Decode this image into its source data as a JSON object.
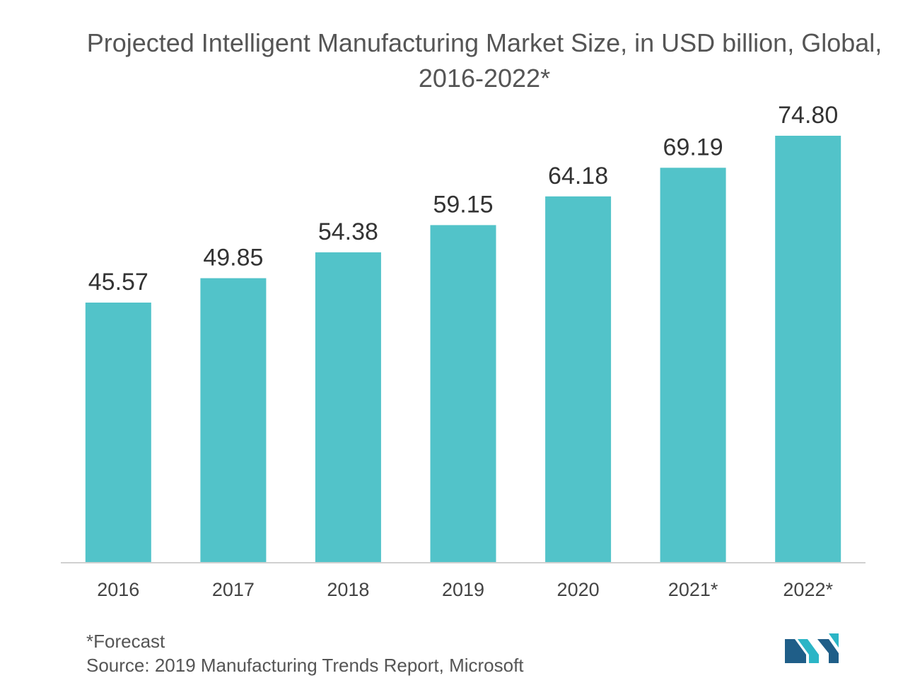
{
  "chart_data": {
    "type": "bar",
    "title": "Projected Intelligent Manufacturing Market Size, in USD billion, Global, 2016-2022*",
    "categories": [
      "2016",
      "2017",
      "2018",
      "2019",
      "2020",
      "2021*",
      "2022*"
    ],
    "values": [
      45.57,
      49.85,
      54.38,
      59.15,
      64.18,
      69.19,
      74.8
    ],
    "value_labels": [
      "45.57",
      "49.85",
      "54.38",
      "59.15",
      "64.18",
      "69.19",
      "74.80"
    ],
    "xlabel": "",
    "ylabel": "",
    "ylim": [
      0,
      74.8
    ],
    "grid": false,
    "bar_color": "#52c3c9"
  },
  "footnote": "*Forecast",
  "source": "Source: 2019 Manufacturing Trends Report, Microsoft",
  "logo": {
    "icon": "mordor-intelligence-logo-icon",
    "colors": [
      "#1f5e88",
      "#2bb5c6"
    ]
  }
}
